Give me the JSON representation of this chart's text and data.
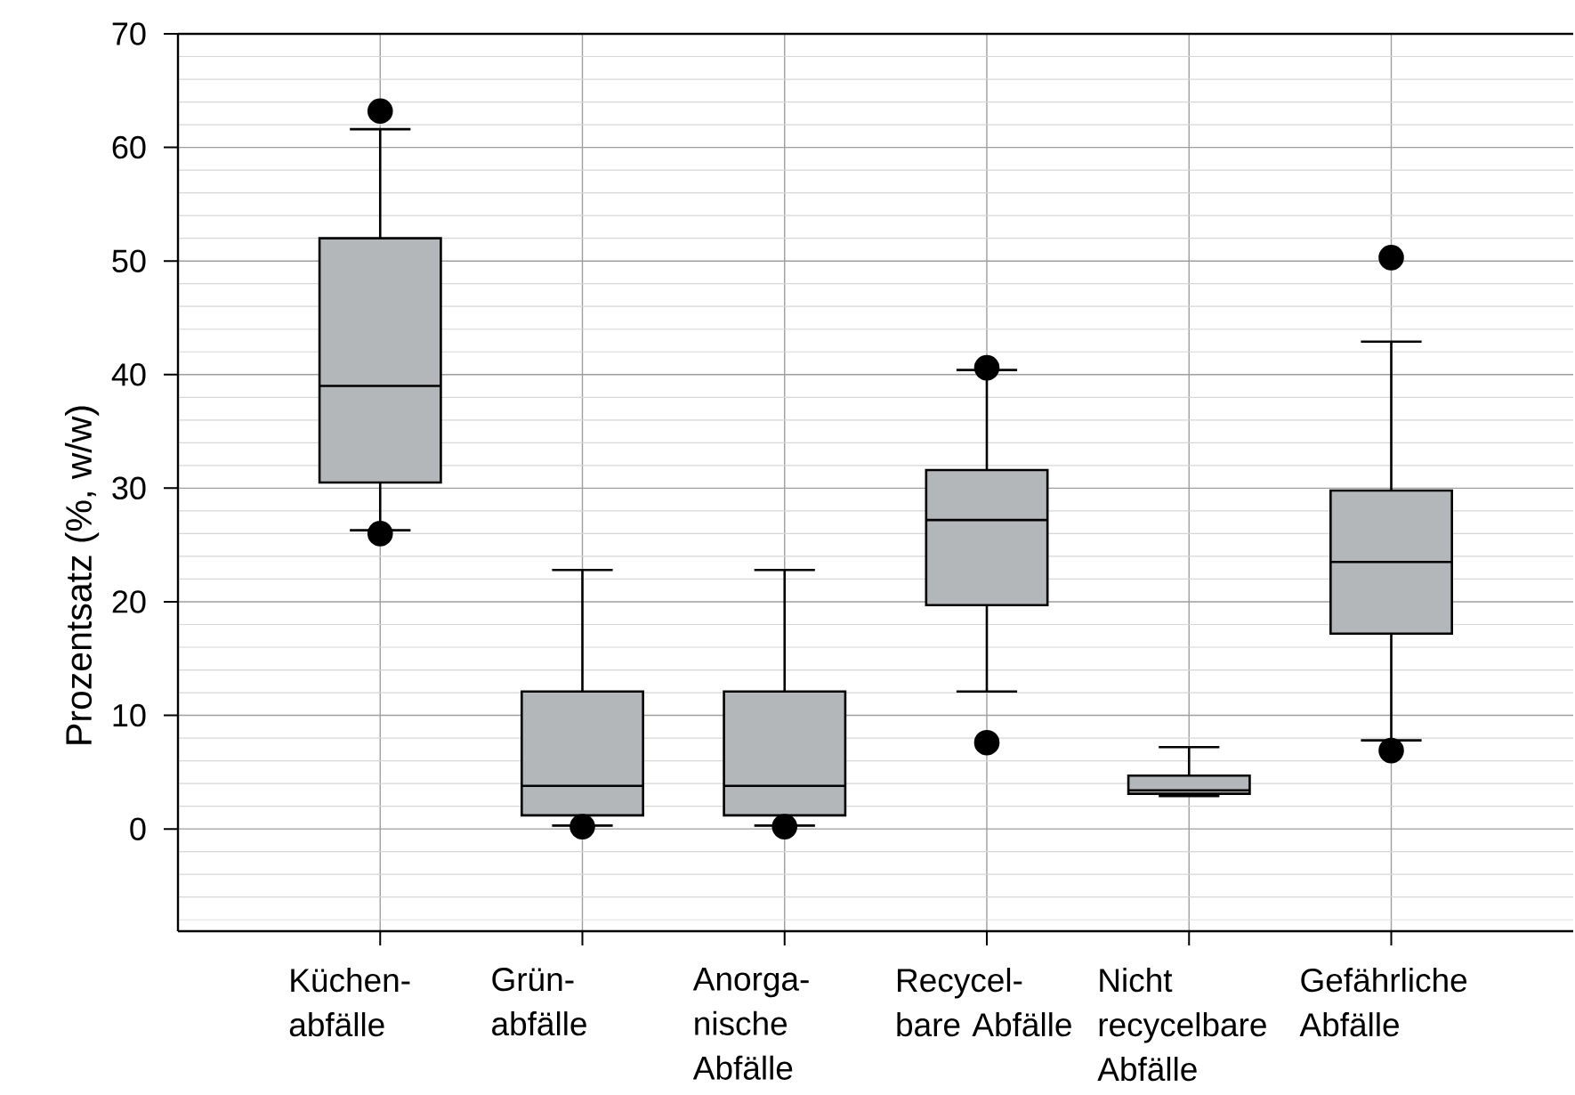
{
  "chart_data": {
    "type": "box",
    "ylabel": "Prozentsatz (%, w/w)",
    "categories": [
      "Küchen- abfälle",
      "Grün- abfälle",
      "Anorga- nische Abfälle",
      "Recycel- bare Abfälle",
      "Nicht recycelbare Abfälle",
      "Gefährliche Abfälle"
    ],
    "series": [
      {
        "color": "#b4b7b9",
        "boxes": [
          {
            "low": 26.3,
            "q1": 30.5,
            "median": 39,
            "q3": 52,
            "high": 61.6,
            "outliers": [
              63.2,
              26
            ]
          },
          {
            "low": 0.3,
            "q1": 1.2,
            "median": 3.8,
            "q3": 12.1,
            "high": 22.8,
            "outliers": [
              0.2
            ]
          },
          {
            "low": 0.3,
            "q1": 1.2,
            "median": 3.8,
            "q3": 12.1,
            "high": 22.8,
            "outliers": [
              0.2
            ]
          },
          {
            "low": 12.1,
            "q1": 19.7,
            "median": 27.2,
            "q3": 31.6,
            "high": 40.4,
            "outliers": [
              40.6,
              7.6
            ]
          },
          {
            "low": 2.9,
            "q1": 3.1,
            "median": 3.4,
            "q3": 4.7,
            "high": 7.2
          },
          {
            "low": 7.8,
            "q1": 17.2,
            "median": 23.5,
            "q3": 29.8,
            "high": 42.9,
            "outliers": [
              50.3,
              6.9
            ]
          }
        ]
      }
    ],
    "ylim": [
      -9,
      70
    ],
    "yticks": [
      0,
      10,
      20,
      30,
      40,
      50,
      60,
      70
    ],
    "grid": true
  }
}
